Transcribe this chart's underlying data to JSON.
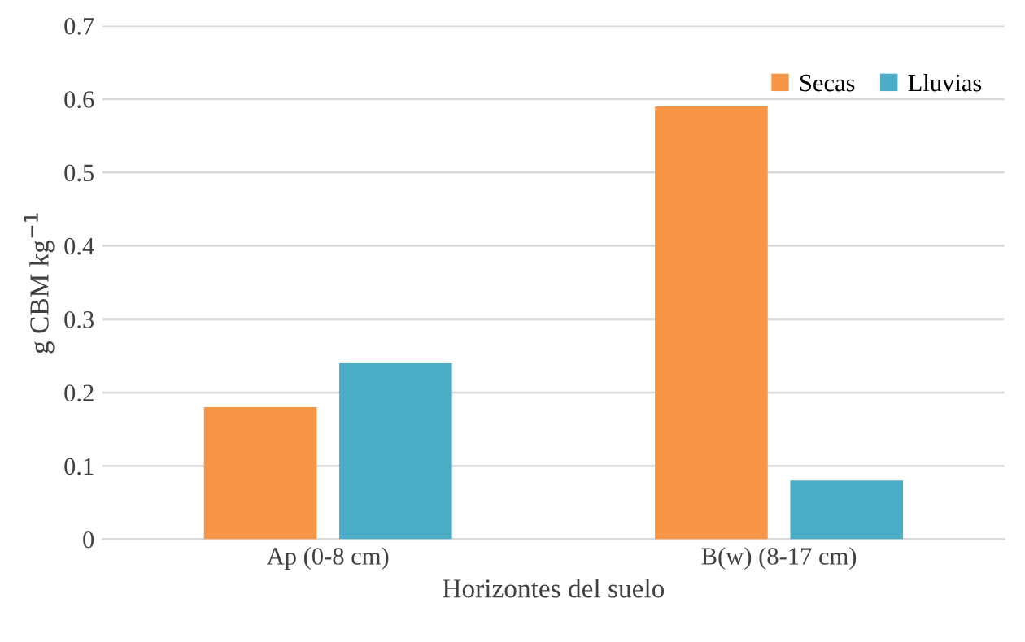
{
  "chart_data": {
    "type": "bar",
    "xlabel": "Horizontes del suelo",
    "ylabel": "g CBM kg$^{−1}$",
    "categories": [
      "Ap (0-8 cm)",
      "B(w) (8-17 cm)"
    ],
    "series": [
      {
        "name": "Secas",
        "color": "#f79646",
        "values": [
          0.18,
          0.59
        ]
      },
      {
        "name": "Lluvias",
        "color": "#4bacc6",
        "values": [
          0.24,
          0.08
        ]
      }
    ],
    "ylim": [
      0,
      0.7
    ],
    "yticks": [
      0,
      0.1,
      0.2,
      0.3,
      0.4,
      0.5,
      0.6,
      0.7
    ],
    "grid": "y",
    "legend": "top right"
  }
}
